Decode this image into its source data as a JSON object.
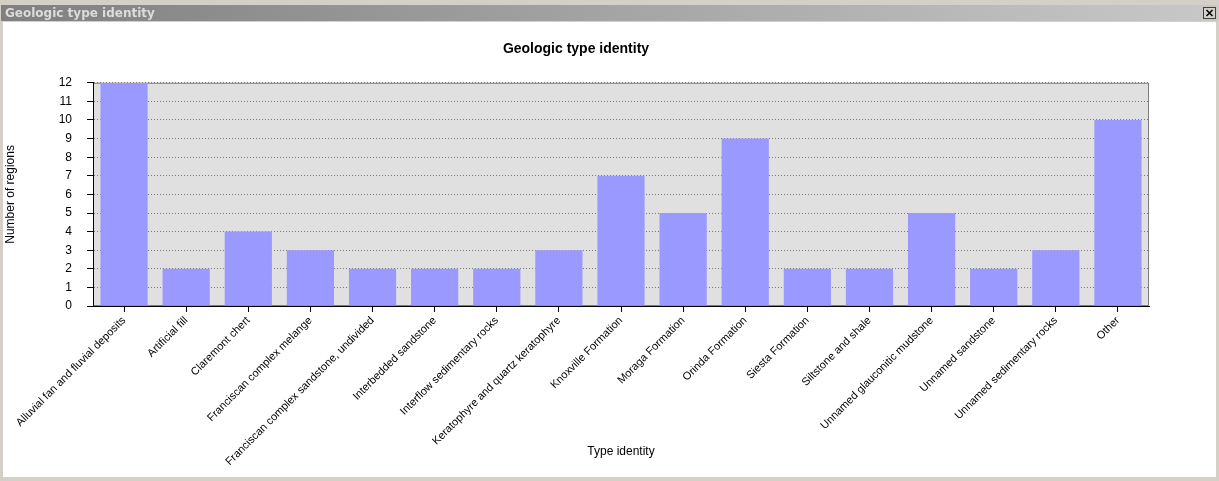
{
  "chart_data": {
    "type": "bar",
    "title": "Geologic type identity",
    "xlabel": "Type identity",
    "ylabel": "Number of regions",
    "categories": [
      "Alluvial fan and fluvial deposits",
      "Artificial fill",
      "Claremont chert",
      "Franciscan complex melange",
      "Franciscan complex sandstone, undivided",
      "Interbedded sandstone",
      "Interflow sedimentary rocks",
      "Keratophyre and quartz keratophyre",
      "Knoxville Formation",
      "Moraga Formation",
      "Orinda Formation",
      "Siesta Formation",
      "Siltstone and shale",
      "Unnamed glauconitic mudstone",
      "Unnamed sandstone",
      "Unnamed sedimentary rocks",
      "Other"
    ],
    "values": [
      12,
      2,
      4,
      3,
      2,
      2,
      2,
      3,
      7,
      5,
      9,
      2,
      2,
      5,
      2,
      3,
      10
    ],
    "color": "#9999ff",
    "ylim": [
      0,
      12
    ],
    "yticks": [
      0,
      1,
      2,
      3,
      4,
      5,
      6,
      7,
      8,
      9,
      10,
      11,
      12
    ],
    "grid": "y"
  }
}
